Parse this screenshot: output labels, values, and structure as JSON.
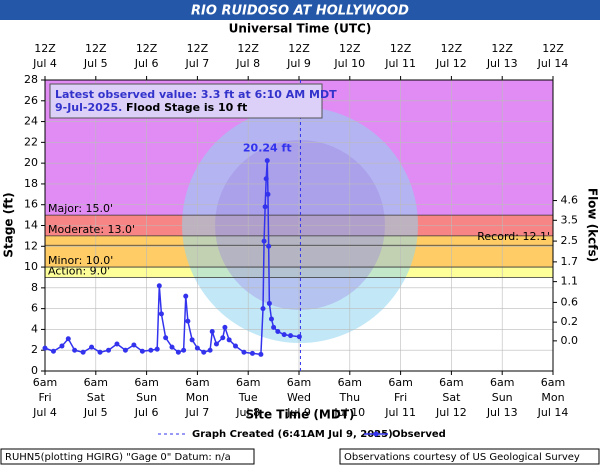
{
  "chart_data": {
    "type": "line",
    "title": "RIO RUIDOSO AT HOLLYWOOD",
    "x2_axis_title": "Universal Time (UTC)",
    "x_axis_title": "Site Time (MDT)",
    "y_axis_title": "Stage (ft)",
    "y2_axis_title": "Flow (kcfs)",
    "xlim": [
      "Jul 4 06:00",
      "Jul 14 06:00"
    ],
    "ylim": [
      0,
      28
    ],
    "yticks": [
      0,
      2,
      4,
      6,
      8,
      10,
      12,
      14,
      16,
      18,
      20,
      22,
      24,
      26,
      28
    ],
    "y2ticks": [
      {
        "value": 4.6,
        "stage": 16.4
      },
      {
        "value": 3.5,
        "stage": 14.5
      },
      {
        "value": 2.5,
        "stage": 12.5
      },
      {
        "value": 1.7,
        "stage": 10.5
      },
      {
        "value": 1.1,
        "stage": 8.6
      },
      {
        "value": 0.6,
        "stage": 6.6
      },
      {
        "value": 0.2,
        "stage": 4.7
      },
      {
        "value": 0,
        "label": "0.0",
        "stage": 2.9
      }
    ],
    "xticks": [
      {
        "value": "Jul 4 06:00",
        "label": "6am",
        "day": "Fri",
        "date": "Jul 4"
      },
      {
        "value": "Jul 5 06:00",
        "label": "6am",
        "day": "Sat",
        "date": "Jul 5"
      },
      {
        "value": "Jul 6 06:00",
        "label": "6am",
        "day": "Sun",
        "date": "Jul 6"
      },
      {
        "value": "Jul 7 06:00",
        "label": "6am",
        "day": "Mon",
        "date": "Jul 7"
      },
      {
        "value": "Jul 8 06:00",
        "label": "6am",
        "day": "Tue",
        "date": "Jul 8"
      },
      {
        "value": "Jul 9 06:00",
        "label": "6am",
        "day": "Wed",
        "date": "Jul 9"
      },
      {
        "value": "Jul 10 06:00",
        "label": "6am",
        "day": "Thu",
        "date": "Jul 10"
      },
      {
        "value": "Jul 11 06:00",
        "label": "6am",
        "day": "Fri",
        "date": "Jul 11"
      },
      {
        "value": "Jul 12 06:00",
        "label": "6am",
        "day": "Sat",
        "date": "Jul 12"
      },
      {
        "value": "Jul 13 06:00",
        "label": "6am",
        "day": "Sun",
        "date": "Jul 13"
      },
      {
        "value": "Jul 14 06:00",
        "label": "6am",
        "day": "Mon",
        "date": "Jul 14"
      }
    ],
    "x2ticks": [
      {
        "value": "Jul 4 06:00",
        "label": "12Z",
        "date": "Jul 4"
      },
      {
        "value": "Jul 5 06:00",
        "label": "12Z",
        "date": "Jul 5"
      },
      {
        "value": "Jul 6 06:00",
        "label": "12Z",
        "date": "Jul 6"
      },
      {
        "value": "Jul 7 06:00",
        "label": "12Z",
        "date": "Jul 7"
      },
      {
        "value": "Jul 8 06:00",
        "label": "12Z",
        "date": "Jul 8"
      },
      {
        "value": "Jul 9 06:00",
        "label": "12Z",
        "date": "Jul 9"
      },
      {
        "value": "Jul 10 06:00",
        "label": "12Z",
        "date": "Jul 10"
      },
      {
        "value": "Jul 11 06:00",
        "label": "12Z",
        "date": "Jul 11"
      },
      {
        "value": "Jul 12 06:00",
        "label": "12Z",
        "date": "Jul 12"
      },
      {
        "value": "Jul 13 06:00",
        "label": "12Z",
        "date": "Jul 13"
      },
      {
        "value": "Jul 14 06:00",
        "label": "12Z",
        "date": "Jul 14"
      }
    ],
    "flood_categories": [
      {
        "label": "Action: 9.0'",
        "value": 9,
        "color": "#ffff99"
      },
      {
        "label": "Minor: 10.0'",
        "value": 10,
        "color": "#ffcc66"
      },
      {
        "label": "Moderate: 13.0'",
        "value": 13,
        "color": "#f78585"
      },
      {
        "label": "Major: 15.0'",
        "value": 15,
        "color": "#e08cf4"
      }
    ],
    "record": {
      "label": "Record: 12.1'",
      "value": 12.1
    },
    "grid": true,
    "series": [
      {
        "name": "Observed",
        "color": "#3333ee",
        "x": [
          "Jul 4 06:00",
          "Jul 4 10:00",
          "Jul 4 14:00",
          "Jul 4 17:00",
          "Jul 4 20:00",
          "Jul 5 00:00",
          "Jul 5 04:00",
          "Jul 5 08:00",
          "Jul 5 12:00",
          "Jul 5 16:00",
          "Jul 5 20:00",
          "Jul 6 00:00",
          "Jul 6 04:00",
          "Jul 6 08:00",
          "Jul 6 11:00",
          "Jul 6 12:00",
          "Jul 6 13:00",
          "Jul 6 15:00",
          "Jul 6 18:00",
          "Jul 6 21:00",
          "Jul 6 23:30",
          "Jul 7 00:30",
          "Jul 7 01:30",
          "Jul 7 03:30",
          "Jul 7 06:00",
          "Jul 7 09:00",
          "Jul 7 12:00",
          "Jul 7 13:00",
          "Jul 7 15:00",
          "Jul 7 18:00",
          "Jul 7 19:00",
          "Jul 7 21:00",
          "Jul 8 00:00",
          "Jul 8 04:00",
          "Jul 8 08:00",
          "Jul 8 12:00",
          "Jul 8 13:00",
          "Jul 8 13:30",
          "Jul 8 14:00",
          "Jul 8 14:30",
          "Jul 8 15:00",
          "Jul 8 15:20",
          "Jul 8 15:40",
          "Jul 8 16:00",
          "Jul 8 17:00",
          "Jul 8 18:00",
          "Jul 8 20:00",
          "Jul 8 23:00",
          "Jul 9 02:00",
          "Jul 9 06:10"
        ],
        "values": [
          2.2,
          1.9,
          2.4,
          3.1,
          2.0,
          1.8,
          2.3,
          1.8,
          2.0,
          2.6,
          2.0,
          2.5,
          1.9,
          2.0,
          2.1,
          8.2,
          5.5,
          3.2,
          2.3,
          1.8,
          2.0,
          7.2,
          4.8,
          3.0,
          2.2,
          1.8,
          2.0,
          3.8,
          2.6,
          3.2,
          4.2,
          3.0,
          2.4,
          1.8,
          1.7,
          1.6,
          6.0,
          12.5,
          15.8,
          18.5,
          20.24,
          17.0,
          12.0,
          6.5,
          5.0,
          4.2,
          3.8,
          3.5,
          3.4,
          3.3
        ]
      }
    ],
    "peak_label": "20.24 ft",
    "peak_index": 40,
    "graph_created": {
      "label": "Graph Created (6:41AM Jul 9, 2025)",
      "x": "Jul 9 06:41"
    },
    "latest": {
      "line1": "Latest observed value: 3.3 ft at 6:10 AM MDT",
      "line2": "9-Jul-2025.",
      "line3": "Flood Stage is 10 ft"
    },
    "footer_left": "RUHN5(plotting HGIRG) \"Gage 0\" Datum: n/a",
    "footer_right": "Observations courtesy of US Geological Survey"
  }
}
